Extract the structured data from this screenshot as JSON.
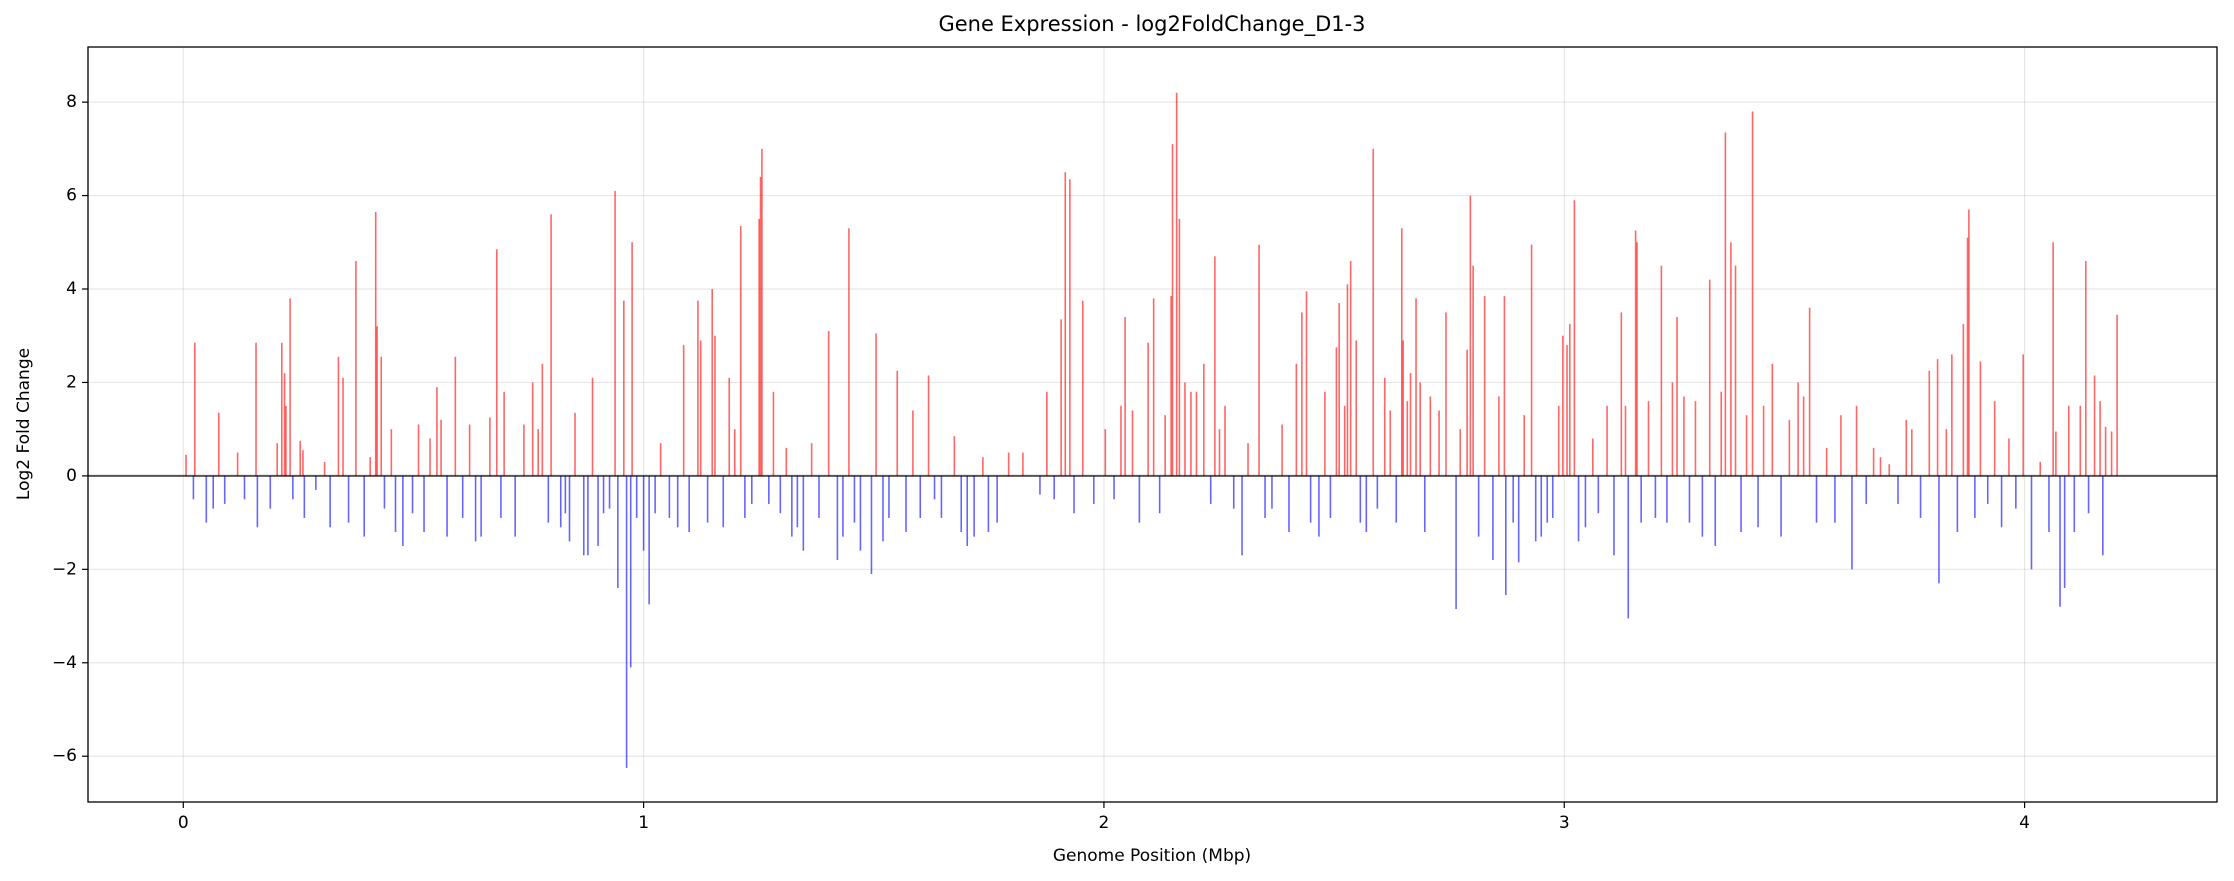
{
  "chart_data": {
    "type": "bar",
    "title": "Gene Expression - log2FoldChange_D1-3",
    "x_label": "Genome Position (Mbp)",
    "y_label": "Log2 Fold Change",
    "color_up": "#ff0000",
    "color_down": "#0000ff",
    "grid": true,
    "xlim": [
      -0.207,
      4.418
    ],
    "ylim": [
      -6.98,
      9.18
    ],
    "xticks": [
      0,
      1,
      2,
      3,
      4
    ],
    "yticks": [
      {
        "value": -6,
        "label": "−6"
      },
      {
        "value": -4,
        "label": "−4"
      },
      {
        "value": -2,
        "label": "−2"
      },
      0,
      2,
      4,
      6,
      8
    ],
    "x": [
      0.006,
      0.022,
      0.025,
      0.05,
      0.065,
      0.077,
      0.09,
      0.118,
      0.133,
      0.158,
      0.161,
      0.189,
      0.204,
      0.214,
      0.22,
      0.223,
      0.232,
      0.238,
      0.254,
      0.26,
      0.263,
      0.288,
      0.307,
      0.319,
      0.337,
      0.347,
      0.359,
      0.375,
      0.393,
      0.406,
      0.418,
      0.421,
      0.43,
      0.437,
      0.452,
      0.461,
      0.477,
      0.498,
      0.511,
      0.523,
      0.536,
      0.551,
      0.56,
      0.573,
      0.591,
      0.607,
      0.622,
      0.635,
      0.647,
      0.666,
      0.681,
      0.69,
      0.697,
      0.721,
      0.74,
      0.759,
      0.771,
      0.78,
      0.793,
      0.799,
      0.82,
      0.83,
      0.839,
      0.851,
      0.87,
      0.879,
      0.889,
      0.901,
      0.913,
      0.926,
      0.938,
      0.944,
      0.957,
      0.963,
      0.972,
      0.975,
      0.985,
      1.0,
      1.012,
      1.025,
      1.037,
      1.056,
      1.074,
      1.087,
      1.099,
      1.118,
      1.124,
      1.139,
      1.149,
      1.155,
      1.173,
      1.186,
      1.198,
      1.211,
      1.22,
      1.235,
      1.251,
      1.254,
      1.257,
      1.272,
      1.282,
      1.297,
      1.31,
      1.322,
      1.334,
      1.347,
      1.365,
      1.381,
      1.402,
      1.421,
      1.433,
      1.446,
      1.458,
      1.471,
      1.495,
      1.505,
      1.52,
      1.533,
      1.551,
      1.57,
      1.585,
      1.601,
      1.619,
      1.632,
      1.647,
      1.675,
      1.69,
      1.703,
      1.718,
      1.737,
      1.749,
      1.768,
      1.793,
      1.824,
      1.861,
      1.876,
      1.892,
      1.907,
      1.916,
      1.926,
      1.935,
      1.954,
      1.978,
      2.003,
      2.022,
      2.037,
      2.046,
      2.062,
      2.077,
      2.096,
      2.108,
      2.121,
      2.133,
      2.146,
      2.149,
      2.158,
      2.164,
      2.176,
      2.189,
      2.201,
      2.217,
      2.232,
      2.241,
      2.251,
      2.263,
      2.282,
      2.3,
      2.313,
      2.337,
      2.35,
      2.365,
      2.387,
      2.402,
      2.418,
      2.43,
      2.44,
      2.449,
      2.467,
      2.48,
      2.492,
      2.505,
      2.511,
      2.523,
      2.529,
      2.536,
      2.548,
      2.557,
      2.57,
      2.585,
      2.594,
      2.61,
      2.622,
      2.635,
      2.647,
      2.65,
      2.659,
      2.666,
      2.678,
      2.687,
      2.697,
      2.709,
      2.728,
      2.743,
      2.765,
      2.774,
      2.789,
      2.796,
      2.802,
      2.814,
      2.827,
      2.845,
      2.858,
      2.87,
      2.873,
      2.889,
      2.901,
      2.913,
      2.929,
      2.938,
      2.95,
      2.963,
      2.975,
      2.988,
      2.997,
      3.006,
      3.012,
      3.022,
      3.031,
      3.046,
      3.062,
      3.074,
      3.093,
      3.108,
      3.124,
      3.133,
      3.139,
      3.155,
      3.158,
      3.167,
      3.183,
      3.198,
      3.211,
      3.223,
      3.235,
      3.245,
      3.26,
      3.272,
      3.285,
      3.3,
      3.316,
      3.328,
      3.341,
      3.35,
      3.362,
      3.372,
      3.384,
      3.396,
      3.409,
      3.421,
      3.433,
      3.452,
      3.471,
      3.489,
      3.508,
      3.52,
      3.533,
      3.548,
      3.57,
      3.588,
      3.601,
      3.625,
      3.635,
      3.656,
      3.672,
      3.687,
      3.706,
      3.725,
      3.743,
      3.755,
      3.774,
      3.793,
      3.811,
      3.814,
      3.83,
      3.842,
      3.854,
      3.867,
      3.876,
      3.879,
      3.892,
      3.904,
      3.92,
      3.935,
      3.95,
      3.966,
      3.981,
      3.997,
      4.015,
      4.034,
      4.053,
      4.062,
      4.068,
      4.077,
      4.087,
      4.096,
      4.108,
      4.121,
      4.133,
      4.139,
      4.152,
      4.164,
      4.17,
      4.176,
      4.189,
      4.201
    ],
    "values": [
      0.45,
      -0.5,
      2.85,
      -1.0,
      -0.7,
      1.35,
      -0.6,
      0.5,
      -0.5,
      2.85,
      -1.1,
      -0.7,
      0.7,
      2.85,
      2.2,
      1.5,
      3.8,
      -0.5,
      0.75,
      0.55,
      -0.9,
      -0.3,
      0.3,
      -1.1,
      2.55,
      2.1,
      -1.0,
      4.6,
      -1.3,
      0.4,
      5.65,
      3.2,
      2.55,
      -0.7,
      1.0,
      -1.2,
      -1.5,
      -0.8,
      1.1,
      -1.2,
      0.8,
      1.9,
      1.2,
      -1.3,
      2.55,
      -0.9,
      1.1,
      -1.4,
      -1.3,
      1.25,
      4.85,
      -0.9,
      1.8,
      -1.3,
      1.1,
      2.0,
      1.0,
      2.4,
      -1.0,
      5.6,
      -1.1,
      -0.8,
      -1.4,
      1.35,
      -1.7,
      -1.7,
      2.1,
      -1.5,
      -0.8,
      -0.7,
      6.1,
      -2.4,
      3.75,
      -6.25,
      -4.1,
      5.0,
      -0.9,
      -1.6,
      -2.75,
      -0.8,
      0.7,
      -0.9,
      -1.1,
      2.8,
      -1.2,
      3.75,
      2.9,
      -1.0,
      4.0,
      3.0,
      -1.1,
      2.1,
      1.0,
      5.35,
      -0.9,
      -0.6,
      5.5,
      6.4,
      7.0,
      -0.6,
      1.8,
      -0.8,
      0.6,
      -1.3,
      -1.1,
      -1.6,
      0.7,
      -0.9,
      3.1,
      -1.8,
      -1.3,
      5.3,
      -1.0,
      -1.6,
      -2.1,
      3.05,
      -1.4,
      -0.9,
      2.25,
      -1.2,
      1.4,
      -0.9,
      2.15,
      -0.5,
      -0.9,
      0.85,
      -1.2,
      -1.5,
      -1.3,
      0.4,
      -1.2,
      -1.0,
      0.5,
      0.5,
      -0.4,
      1.8,
      -0.5,
      3.35,
      6.5,
      6.35,
      -0.8,
      3.75,
      -0.6,
      1.0,
      -0.5,
      1.5,
      3.4,
      1.4,
      -1.0,
      2.85,
      3.8,
      -0.8,
      1.3,
      3.85,
      7.1,
      8.2,
      5.5,
      2.0,
      1.8,
      1.8,
      2.4,
      -0.6,
      4.7,
      1.0,
      1.5,
      -0.7,
      -1.7,
      0.7,
      4.95,
      -0.9,
      -0.7,
      1.1,
      -1.2,
      2.4,
      3.5,
      3.95,
      -1.0,
      -1.3,
      1.8,
      -0.9,
      2.75,
      3.7,
      1.5,
      4.1,
      4.6,
      2.9,
      -1.0,
      -1.2,
      7.0,
      -0.7,
      2.1,
      1.4,
      -1.0,
      5.3,
      2.9,
      1.6,
      2.2,
      3.8,
      2.0,
      -1.2,
      1.7,
      1.4,
      3.5,
      -2.85,
      1.0,
      2.7,
      6.0,
      4.5,
      -1.3,
      3.85,
      -1.8,
      1.7,
      3.85,
      -2.55,
      -1.0,
      -1.85,
      1.3,
      4.95,
      -1.4,
      -1.3,
      -1.0,
      -0.9,
      1.5,
      3.0,
      2.8,
      3.25,
      5.9,
      -1.4,
      -1.1,
      0.8,
      -0.8,
      1.5,
      -1.7,
      3.5,
      1.5,
      -3.05,
      5.25,
      5.0,
      -1.0,
      1.6,
      -0.9,
      4.5,
      -1.0,
      2.0,
      3.4,
      1.7,
      -1.0,
      1.6,
      -1.3,
      4.2,
      -1.5,
      1.8,
      7.35,
      5.0,
      4.5,
      -1.2,
      1.3,
      7.8,
      -1.1,
      1.5,
      2.4,
      -1.3,
      1.2,
      2.0,
      1.7,
      3.6,
      -1.0,
      0.6,
      -1.0,
      1.3,
      -2.0,
      1.5,
      -0.6,
      0.6,
      0.4,
      0.25,
      -0.6,
      1.2,
      1.0,
      -0.9,
      2.25,
      2.5,
      -2.3,
      1.0,
      2.6,
      -1.2,
      3.25,
      5.1,
      5.7,
      -0.9,
      2.45,
      -0.6,
      1.6,
      -1.1,
      0.8,
      -0.7,
      2.6,
      -2.0,
      0.3,
      -1.2,
      5.0,
      0.95,
      -2.8,
      -2.4,
      1.5,
      -1.2,
      1.5,
      4.6,
      -0.8,
      2.15,
      1.6,
      -1.7,
      1.05,
      0.95,
      3.45
    ]
  }
}
